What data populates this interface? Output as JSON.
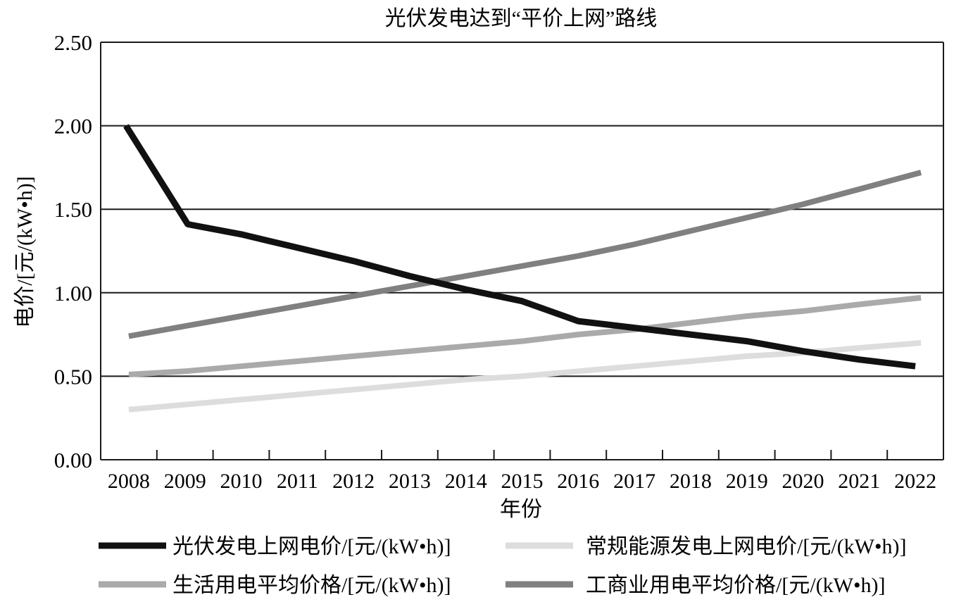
{
  "chart_data": {
    "type": "line",
    "title": "光伏发电达到“平价上网”路线",
    "xlabel": "年份",
    "ylabel": "电价/[元/(kW•h)]",
    "ylim": [
      0,
      2.5
    ],
    "yticks": [
      "0.00",
      "0.50",
      "1.00",
      "1.50",
      "2.00",
      "2.50"
    ],
    "categories": [
      "2008",
      "2009",
      "2010",
      "2011",
      "2012",
      "2013",
      "2014",
      "2015",
      "2016",
      "2017",
      "2018",
      "2019",
      "2020",
      "2021",
      "2022"
    ],
    "grid": "horizontal",
    "legend_position": "bottom",
    "series": [
      {
        "name": "光伏发电上网电价/[元/(kW•h)]",
        "color": "#111111",
        "x": [
          2007.95,
          2009.05,
          2010,
          2011,
          2012,
          2013,
          2014,
          2015,
          2016,
          2017,
          2018,
          2019,
          2020,
          2021,
          2022.0
        ],
        "values": [
          2.0,
          1.41,
          1.35,
          1.27,
          1.19,
          1.1,
          1.02,
          0.95,
          0.83,
          0.79,
          0.75,
          0.71,
          0.65,
          0.6,
          0.56
        ]
      },
      {
        "name": "常规能源发电上网电价/[元/(kW•h)]",
        "color": "#dddddd",
        "x": [
          2008,
          2009,
          2010,
          2011,
          2012,
          2013,
          2014,
          2015,
          2016,
          2017,
          2018,
          2019,
          2020,
          2021,
          2022.1
        ],
        "values": [
          0.3,
          0.33,
          0.36,
          0.39,
          0.42,
          0.45,
          0.48,
          0.5,
          0.53,
          0.56,
          0.59,
          0.62,
          0.64,
          0.67,
          0.7
        ]
      },
      {
        "name": "生活用电平均价格/[元/(kW•h)]",
        "color": "#aaaaaa",
        "x": [
          2008,
          2009,
          2010,
          2011,
          2012,
          2013,
          2014,
          2015,
          2016,
          2017,
          2018,
          2019,
          2020,
          2021,
          2022.1
        ],
        "values": [
          0.51,
          0.53,
          0.56,
          0.59,
          0.62,
          0.65,
          0.68,
          0.71,
          0.75,
          0.78,
          0.82,
          0.86,
          0.89,
          0.93,
          0.97
        ]
      },
      {
        "name": "工商业用电平均价格/[元/(kW•h)]",
        "color": "#808080",
        "x": [
          2008,
          2009,
          2010,
          2011,
          2012,
          2013,
          2014,
          2015,
          2016,
          2017,
          2018,
          2019,
          2020,
          2021,
          2022.1
        ],
        "values": [
          0.74,
          0.8,
          0.86,
          0.92,
          0.98,
          1.04,
          1.1,
          1.16,
          1.22,
          1.29,
          1.37,
          1.45,
          1.53,
          1.62,
          1.72
        ]
      }
    ]
  }
}
